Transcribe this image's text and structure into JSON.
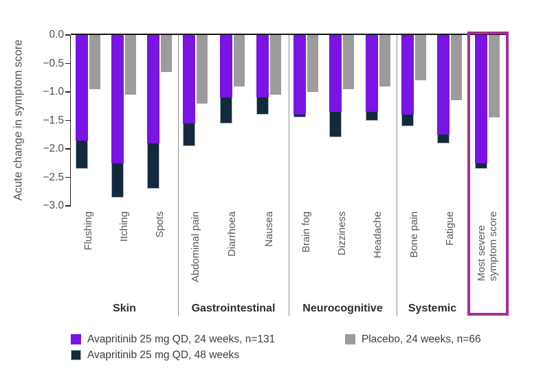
{
  "page": {
    "background": "#ffffff"
  },
  "chart_data": {
    "type": "bar",
    "title": "",
    "ylabel": "Acute change in symptom score",
    "xlabel": "",
    "ylim": [
      -3.0,
      0.0
    ],
    "ytick_interval": 0.5,
    "ytick_labels": [
      "0.0",
      "−0.5",
      "−1.0",
      "−1.5",
      "−2.0",
      "−2.5",
      "−3.0"
    ],
    "bar_direction": "down",
    "grid": false,
    "legend_position": "bottom",
    "series_meta": [
      {
        "key": "avapritinib_24wk",
        "label": "Avapritinib 25 mg QD, 24 weeks, n=131",
        "color": "#7914e4"
      },
      {
        "key": "avapritinib_48wk",
        "label": "Avapritinib 25 mg QD, 48 weeks",
        "color": "#13293e"
      },
      {
        "key": "placebo_24wk",
        "label": "Placebo, 24 weeks, n=66",
        "color": "#9c9c9c"
      }
    ],
    "groups": [
      {
        "label": "Skin",
        "items": [
          {
            "symptom": "Flushing",
            "avapritinib_24wk": -1.85,
            "avapritinib_48wk": -2.35,
            "placebo_24wk": -0.95
          },
          {
            "symptom": "Itching",
            "avapritinib_24wk": -2.25,
            "avapritinib_48wk": -2.85,
            "placebo_24wk": -1.05
          },
          {
            "symptom": "Spots",
            "avapritinib_24wk": -1.9,
            "avapritinib_48wk": -2.7,
            "placebo_24wk": -0.65
          }
        ]
      },
      {
        "label": "Gastrointestinal",
        "items": [
          {
            "symptom": "Abdominal pain",
            "avapritinib_24wk": -1.55,
            "avapritinib_48wk": -1.95,
            "placebo_24wk": -1.2
          },
          {
            "symptom": "Diarrhoea",
            "avapritinib_24wk": -1.1,
            "avapritinib_48wk": -1.55,
            "placebo_24wk": -0.9
          },
          {
            "symptom": "Nausea",
            "avapritinib_24wk": -1.1,
            "avapritinib_48wk": -1.4,
            "placebo_24wk": -1.05
          }
        ]
      },
      {
        "label": "Neurocognitive",
        "items": [
          {
            "symptom": "Brain fog",
            "avapritinib_24wk": -1.4,
            "avapritinib_48wk": -1.45,
            "placebo_24wk": -1.0
          },
          {
            "symptom": "Dizziness",
            "avapritinib_24wk": -1.35,
            "avapritinib_48wk": -1.8,
            "placebo_24wk": -0.95
          },
          {
            "symptom": "Headache",
            "avapritinib_24wk": -1.35,
            "avapritinib_48wk": -1.5,
            "placebo_24wk": -0.9
          }
        ]
      },
      {
        "label": "Systemic",
        "items": [
          {
            "symptom": "Bone pain",
            "avapritinib_24wk": -1.4,
            "avapritinib_48wk": -1.6,
            "placebo_24wk": -0.8
          },
          {
            "symptom": "Fatigue",
            "avapritinib_24wk": -1.75,
            "avapritinib_48wk": -1.9,
            "placebo_24wk": -1.15
          }
        ]
      },
      {
        "label": "",
        "highlighted": true,
        "items": [
          {
            "symptom": "Most severe symptom score",
            "label_lines": [
              "Most severe",
              "symptom score"
            ],
            "avapritinib_24wk": -2.25,
            "avapritinib_48wk": -2.35,
            "placebo_24wk": -1.45
          }
        ]
      }
    ],
    "highlight_box_color": "#a62e98",
    "axis_color": "#262626",
    "divider_color": "#8c8c8c"
  }
}
